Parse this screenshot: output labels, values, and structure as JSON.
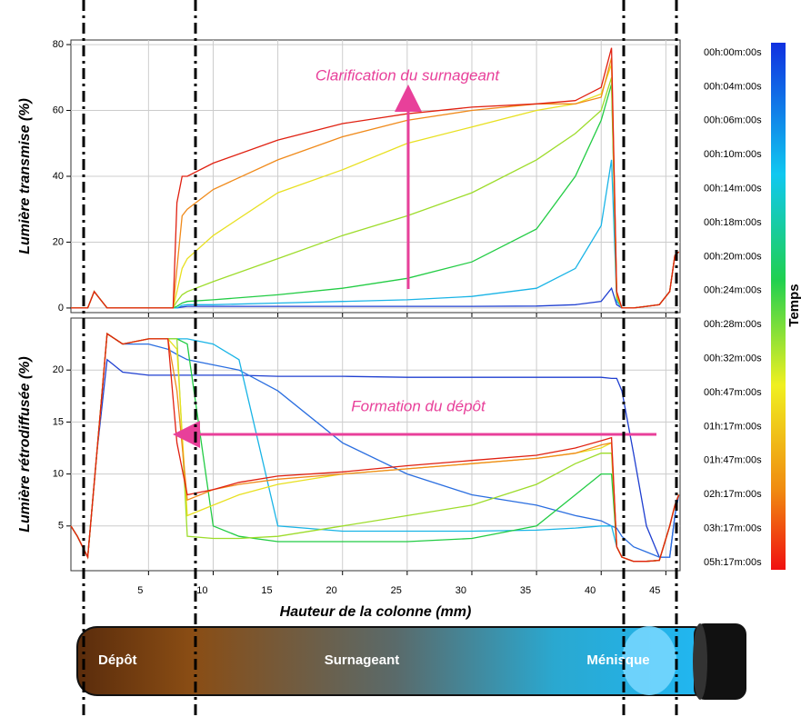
{
  "chart_data": [
    {
      "type": "line",
      "ylabel": "Lumière transmise (%)",
      "annotation": "Clarification du surnageant",
      "x": [
        -1,
        0.3,
        0.8,
        1.2,
        1.8,
        2.5,
        4,
        6.9,
        7.2,
        7.6,
        8,
        10,
        15,
        20,
        25,
        30,
        35,
        38,
        40,
        40.8,
        41.2,
        41.6,
        42.5,
        43.5,
        44.5,
        45.3,
        45.7,
        46
      ],
      "series": [
        {
          "color": "#1f3fd0",
          "values": [
            0,
            0,
            5,
            3,
            0,
            0,
            0,
            0,
            0,
            0.3,
            0.5,
            0.5,
            0.5,
            0.5,
            0.5,
            0.5,
            0.6,
            1,
            2,
            6,
            1,
            0,
            0,
            0.5,
            1,
            5,
            16,
            17
          ]
        },
        {
          "color": "#19b4e6",
          "values": [
            0,
            0,
            5,
            3,
            0,
            0,
            0,
            0,
            0,
            0.8,
            1,
            1,
            1.5,
            2,
            2.5,
            3.5,
            6,
            12,
            25,
            45,
            2,
            0,
            0,
            0.5,
            1,
            5,
            16,
            17
          ]
        },
        {
          "color": "#22cc44",
          "values": [
            0,
            0,
            5,
            3,
            0,
            0,
            0,
            0,
            0.5,
            1.5,
            2,
            2.5,
            4,
            6,
            9,
            14,
            24,
            40,
            57,
            68,
            3,
            0,
            0,
            0.5,
            1,
            5,
            16,
            17
          ]
        },
        {
          "color": "#9ddc2a",
          "values": [
            0,
            0,
            5,
            3,
            0,
            0,
            0,
            0,
            2,
            4,
            5,
            8,
            15,
            22,
            28,
            35,
            45,
            53,
            60,
            70,
            3,
            0,
            0,
            0.5,
            1,
            5,
            16,
            17
          ]
        },
        {
          "color": "#e8e020",
          "values": [
            0,
            0,
            5,
            3,
            0,
            0,
            0,
            0,
            5,
            12,
            15,
            22,
            35,
            42,
            50,
            55,
            60,
            62,
            65,
            74,
            4,
            0,
            0,
            0.5,
            1,
            5,
            16,
            17
          ]
        },
        {
          "color": "#f08a1a",
          "values": [
            0,
            0,
            5,
            3,
            0,
            0,
            0,
            0,
            12,
            28,
            30,
            36,
            45,
            52,
            57,
            60,
            62,
            62,
            64,
            76,
            4,
            0,
            0,
            0.5,
            1,
            5,
            16,
            17
          ]
        },
        {
          "color": "#e02010",
          "values": [
            0,
            0,
            5,
            3,
            0,
            0,
            0,
            0,
            32,
            40,
            40,
            44,
            51,
            56,
            59,
            61,
            62,
            63,
            67,
            79,
            5,
            0,
            0,
            0.5,
            1,
            5,
            16,
            17
          ]
        }
      ],
      "xlim": [
        -1,
        46.1
      ],
      "xticks": [
        5,
        10,
        15,
        20,
        25,
        30,
        35,
        40,
        45
      ],
      "ylim": [
        -1.4,
        81.4
      ],
      "yticks": [
        0,
        20,
        40,
        60,
        80
      ],
      "grid": true
    },
    {
      "type": "line",
      "ylabel": "Lumière rétrodiffusée (%)",
      "xlabel": "Hauteur de la colonne (mm)",
      "annotation": "Formation  du dépôt",
      "x": [
        -1,
        -0.5,
        0.3,
        1,
        1.8,
        3,
        5,
        6.5,
        7.2,
        8,
        10,
        12,
        15,
        20,
        25,
        30,
        35,
        38,
        40,
        40.8,
        41.2,
        41.6,
        42.5,
        43.5,
        44.5,
        45.3,
        45.7,
        46
      ],
      "series": [
        {
          "color": "#1f3fd0",
          "values": [
            5,
            4,
            2,
            12,
            21,
            19.8,
            19.5,
            19.5,
            19.5,
            19.5,
            19.5,
            19.5,
            19.4,
            19.4,
            19.3,
            19.3,
            19.3,
            19.3,
            19.3,
            19.2,
            19.2,
            18,
            12,
            5,
            2,
            2,
            6,
            8
          ]
        },
        {
          "color": "#2a6ee0",
          "values": [
            5,
            4,
            2,
            12,
            23.5,
            22.5,
            22.5,
            22,
            21.5,
            21,
            20.5,
            20,
            18,
            13,
            10,
            8,
            7,
            6,
            5.5,
            5,
            4.8,
            4,
            3,
            2.5,
            2,
            2,
            6,
            8
          ]
        },
        {
          "color": "#19b4e6",
          "values": [
            5,
            4,
            2,
            12,
            23.5,
            22.5,
            23,
            23,
            23,
            23,
            22.5,
            21,
            5,
            4.5,
            4.5,
            4.5,
            4.6,
            4.8,
            5,
            5,
            3,
            2,
            1.6,
            1.6,
            1.7,
            5,
            7,
            8
          ]
        },
        {
          "color": "#22cc44",
          "values": [
            5,
            4,
            2,
            12,
            23.5,
            22.5,
            23,
            23,
            23,
            22.5,
            5,
            4,
            3.5,
            3.5,
            3.5,
            3.8,
            5,
            8,
            10,
            10,
            3,
            2,
            1.6,
            1.6,
            1.7,
            5,
            7,
            8
          ]
        },
        {
          "color": "#9ddc2a",
          "values": [
            5,
            4,
            2,
            12,
            23.5,
            22.5,
            23,
            23,
            23,
            4,
            3.8,
            3.8,
            4,
            5,
            6,
            7,
            9,
            11,
            12,
            12,
            3,
            2,
            1.6,
            1.6,
            1.7,
            5,
            7,
            8
          ]
        },
        {
          "color": "#e8e020",
          "values": [
            5,
            4,
            2,
            12,
            23.5,
            22.5,
            23,
            23,
            22,
            6,
            7,
            8,
            9,
            10,
            10.5,
            11,
            11.5,
            12,
            12.5,
            13,
            3,
            2,
            1.6,
            1.6,
            1.7,
            5,
            7,
            8
          ]
        },
        {
          "color": "#f08a1a",
          "values": [
            5,
            4,
            2,
            12,
            23.5,
            22.5,
            23,
            23,
            18,
            7.5,
            8.5,
            9,
            9.5,
            10,
            10.5,
            11,
            11.5,
            12,
            12.8,
            13,
            3,
            2,
            1.6,
            1.6,
            1.7,
            5,
            7,
            8
          ]
        },
        {
          "color": "#e02010",
          "values": [
            5,
            4,
            2,
            12,
            23.5,
            22.5,
            23,
            23,
            13,
            8,
            8.5,
            9.2,
            9.8,
            10.2,
            10.8,
            11.3,
            11.8,
            12.5,
            13.2,
            13.5,
            3,
            2,
            1.6,
            1.6,
            1.7,
            5,
            7,
            8
          ]
        }
      ],
      "xlim": [
        -1,
        46.1
      ],
      "xticks": [
        5,
        10,
        15,
        20,
        25,
        30,
        35,
        40,
        45
      ],
      "ylim": [
        0.7,
        25
      ],
      "yticks": [
        5,
        10,
        15,
        20
      ],
      "grid": true
    }
  ],
  "colorbar": {
    "title": "Temps",
    "labels": [
      "00h:00m:00s",
      "00h:04m:00s",
      "00h:06m:00s",
      "00h:10m:00s",
      "00h:14m:00s",
      "00h:18m:00s",
      "00h:20m:00s",
      "00h:24m:00s",
      "00h:28m:00s",
      "00h:32m:00s",
      "00h:47m:00s",
      "01h:17m:00s",
      "01h:47m:00s",
      "02h:17m:00s",
      "03h:17m:00s",
      "05h:17m:00s"
    ]
  },
  "tube": {
    "labels": [
      "Dépôt",
      "Surnageant",
      "Ménisque"
    ]
  }
}
